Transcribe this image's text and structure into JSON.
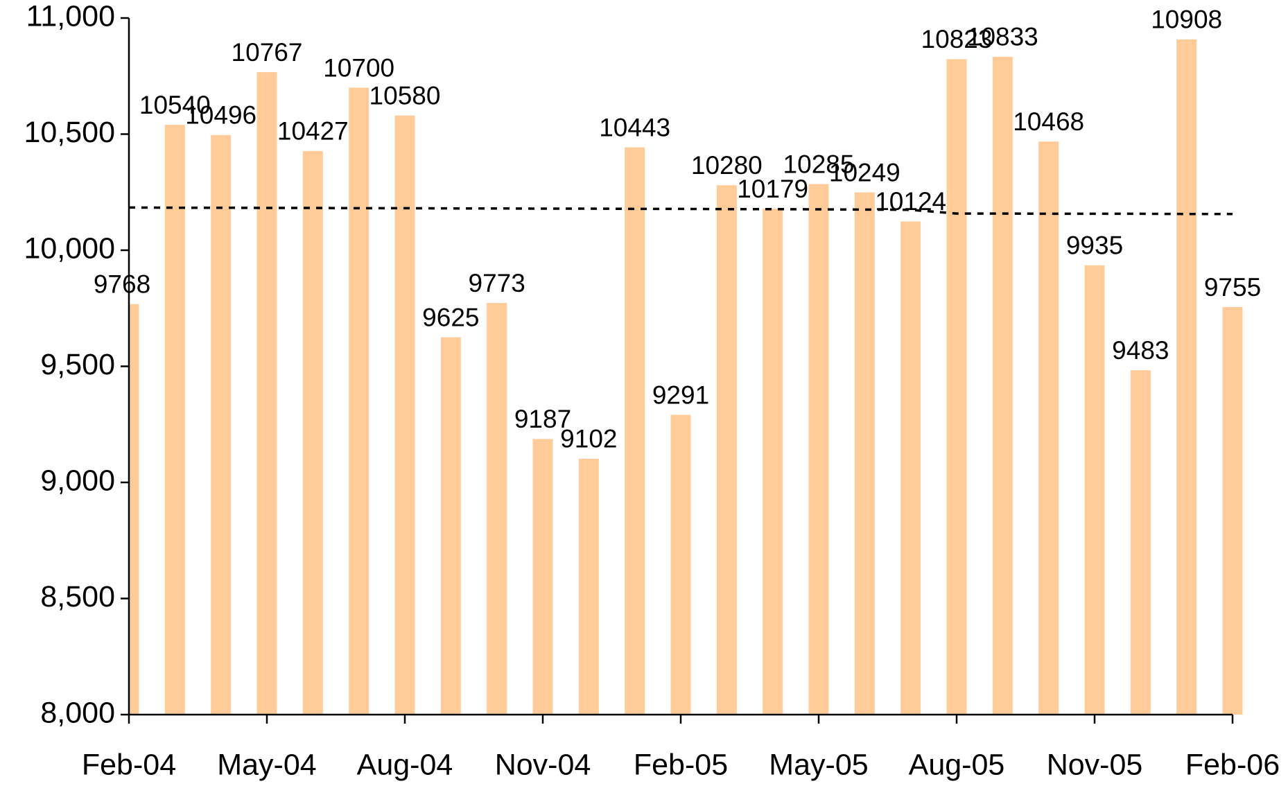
{
  "chart_data": {
    "type": "bar",
    "categories": [
      "Feb-04",
      null,
      null,
      "May-04",
      null,
      null,
      "Aug-04",
      null,
      null,
      "Nov-04",
      null,
      null,
      "Feb-05",
      null,
      null,
      "May-05",
      null,
      null,
      "Aug-05",
      null,
      null,
      "Nov-05",
      null,
      null,
      "Feb-06"
    ],
    "series": [
      {
        "type": "bar",
        "color": "#ffcc99",
        "values": [
          9768,
          10540,
          10496,
          10767,
          10427,
          10700,
          10580,
          9625,
          9773,
          9187,
          9102,
          10443,
          9291,
          10280,
          10179,
          10285,
          10249,
          10124,
          10823,
          10833,
          10468,
          9935,
          9483,
          10908,
          9755
        ]
      },
      {
        "type": "line",
        "color": "#000000",
        "dashed": true,
        "values": [
          10184,
          10183,
          10183,
          10182,
          10182,
          10181,
          10181,
          10180,
          10180,
          10179,
          10179,
          10178,
          10178,
          10177,
          10177,
          10176,
          10175,
          10174,
          10158,
          10158,
          10157,
          10157,
          10157,
          10156,
          10156
        ]
      }
    ],
    "ylim": [
      8000,
      11000
    ],
    "yticks": [
      {
        "value": 8000,
        "label": "8,000"
      },
      {
        "value": 8500,
        "label": "8,500"
      },
      {
        "value": 9000,
        "label": "9,000"
      },
      {
        "value": 9500,
        "label": "9,500"
      },
      {
        "value": 10000,
        "label": "10,000"
      },
      {
        "value": 10500,
        "label": "10,500"
      },
      {
        "value": 11000,
        "label": "11,000"
      }
    ],
    "grid": false
  }
}
